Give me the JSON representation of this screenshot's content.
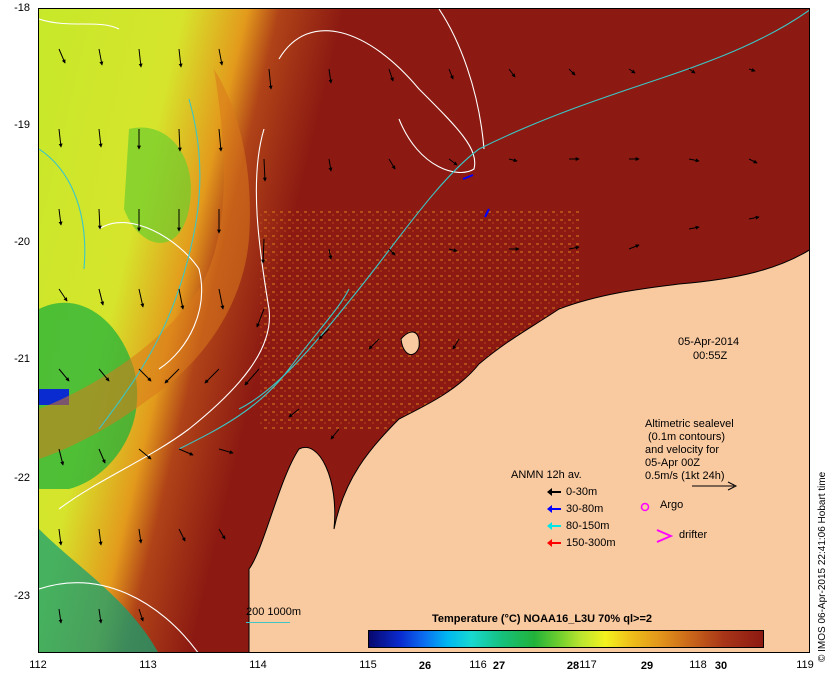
{
  "axes": {
    "y_ticks": [
      "-18",
      "-19",
      "-20",
      "-21",
      "-22",
      "-23"
    ],
    "x_ticks": [
      "112",
      "113",
      "114",
      "115",
      "116",
      "117",
      "118",
      "119"
    ]
  },
  "timestamp": {
    "date": "05-Apr-2014",
    "time": "00:55Z"
  },
  "altimetry_note": [
    "Altimetric sealevel",
    "(0.1m contours)",
    "and velocity for",
    "05-Apr 00Z",
    "0.5m/s (1kt 24h)"
  ],
  "mooring_legend": {
    "title": "ANMN 12h av.",
    "items": [
      {
        "label": "0-30m",
        "color": "#000000"
      },
      {
        "label": "30-80m",
        "color": "#0000ff"
      },
      {
        "label": "80-150m",
        "color": "#00e5e5"
      },
      {
        "label": "150-300m",
        "color": "#ff0000"
      }
    ]
  },
  "markers": {
    "argo_label": "Argo",
    "drifter_label": "drifter",
    "marker_color": "#ff00ff"
  },
  "depth_legend": {
    "label": "200  1000m",
    "line_color": "#3cc6c6"
  },
  "colorbar": {
    "title": "Temperature (°C) NOAA16_L3U 70% ql>=2",
    "ticks": [
      "26",
      "27",
      "28",
      "29",
      "30"
    ]
  },
  "credit": "© IMOS 06-Apr-2015 22:41:06 Hobart time",
  "colors": {
    "land": "#f9c9a0",
    "warm_water": "#8c1a12",
    "cool_water": "#c7e82a",
    "contour": "#ffffff",
    "isobath": "#3cc6c6"
  }
}
